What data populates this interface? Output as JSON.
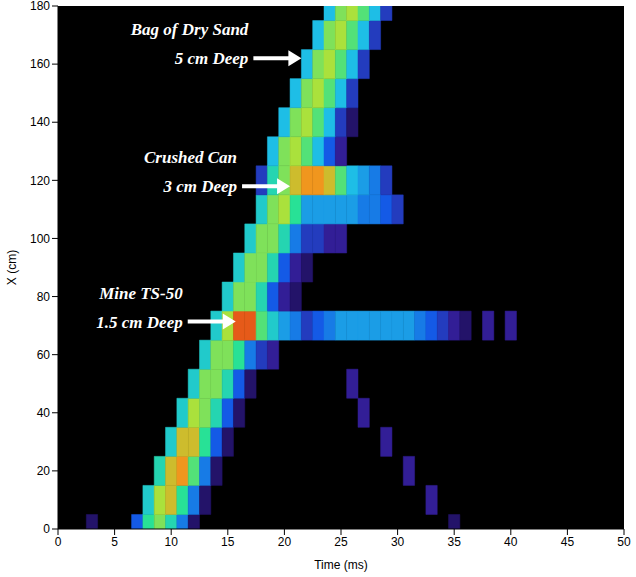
{
  "chart_data": {
    "type": "heatmap",
    "x_label": "Time (ms)",
    "y_label": "X (cm)",
    "xlim": [
      0,
      50
    ],
    "ylim": [
      0,
      180
    ],
    "xticks": [
      0,
      5,
      10,
      15,
      20,
      25,
      30,
      35,
      40,
      45,
      50
    ],
    "yticks": [
      0,
      20,
      40,
      60,
      80,
      100,
      120,
      140,
      160,
      180
    ],
    "grid": false,
    "heatmap": {
      "cell_width": 1,
      "cell_height": 10,
      "cells": [
        [
          3,
          0,
          0.2
        ],
        [
          7,
          0,
          0.35
        ],
        [
          8,
          0,
          0.65
        ],
        [
          9,
          0,
          0.75
        ],
        [
          10,
          0,
          0.6
        ],
        [
          11,
          0,
          0.4
        ],
        [
          12,
          0,
          0.2
        ],
        [
          35,
          0,
          0.2
        ],
        [
          8,
          10,
          0.55
        ],
        [
          9,
          10,
          0.8
        ],
        [
          10,
          10,
          0.85
        ],
        [
          11,
          10,
          0.65
        ],
        [
          12,
          10,
          0.4
        ],
        [
          13,
          10,
          0.2
        ],
        [
          33,
          10,
          0.25
        ],
        [
          9,
          20,
          0.6
        ],
        [
          10,
          20,
          0.85
        ],
        [
          11,
          20,
          0.9
        ],
        [
          12,
          20,
          0.7
        ],
        [
          13,
          20,
          0.4
        ],
        [
          14,
          20,
          0.2
        ],
        [
          31,
          20,
          0.25
        ],
        [
          10,
          30,
          0.55
        ],
        [
          11,
          30,
          0.85
        ],
        [
          12,
          30,
          0.85
        ],
        [
          13,
          30,
          0.65
        ],
        [
          14,
          30,
          0.35
        ],
        [
          15,
          30,
          0.2
        ],
        [
          29,
          30,
          0.25
        ],
        [
          11,
          40,
          0.55
        ],
        [
          12,
          40,
          0.8
        ],
        [
          13,
          40,
          0.75
        ],
        [
          14,
          40,
          0.6
        ],
        [
          15,
          40,
          0.35
        ],
        [
          16,
          40,
          0.2
        ],
        [
          27,
          40,
          0.25
        ],
        [
          12,
          50,
          0.55
        ],
        [
          13,
          50,
          0.75
        ],
        [
          14,
          50,
          0.75
        ],
        [
          15,
          50,
          0.6
        ],
        [
          16,
          50,
          0.35
        ],
        [
          17,
          50,
          0.2
        ],
        [
          26,
          50,
          0.25
        ],
        [
          13,
          60,
          0.55
        ],
        [
          14,
          60,
          0.75
        ],
        [
          15,
          60,
          0.75
        ],
        [
          16,
          60,
          0.65
        ],
        [
          17,
          60,
          0.4
        ],
        [
          18,
          60,
          0.3
        ],
        [
          19,
          60,
          0.25
        ],
        [
          14,
          70,
          0.55
        ],
        [
          15,
          70,
          0.8
        ],
        [
          16,
          70,
          0.95
        ],
        [
          17,
          70,
          0.95
        ],
        [
          18,
          70,
          0.7
        ],
        [
          19,
          70,
          0.55
        ],
        [
          20,
          70,
          0.45
        ],
        [
          21,
          70,
          0.4
        ],
        [
          22,
          70,
          0.3
        ],
        [
          23,
          70,
          0.35
        ],
        [
          24,
          70,
          0.4
        ],
        [
          25,
          70,
          0.45
        ],
        [
          26,
          70,
          0.45
        ],
        [
          27,
          70,
          0.45
        ],
        [
          28,
          70,
          0.45
        ],
        [
          29,
          70,
          0.45
        ],
        [
          30,
          70,
          0.45
        ],
        [
          31,
          70,
          0.45
        ],
        [
          32,
          70,
          0.4
        ],
        [
          33,
          70,
          0.35
        ],
        [
          34,
          70,
          0.3
        ],
        [
          35,
          70,
          0.25
        ],
        [
          36,
          70,
          0.2
        ],
        [
          38,
          70,
          0.25
        ],
        [
          40,
          70,
          0.25
        ],
        [
          15,
          80,
          0.55
        ],
        [
          16,
          80,
          0.75
        ],
        [
          17,
          80,
          0.75
        ],
        [
          18,
          80,
          0.6
        ],
        [
          19,
          80,
          0.35
        ],
        [
          20,
          80,
          0.25
        ],
        [
          21,
          80,
          0.2
        ],
        [
          16,
          90,
          0.55
        ],
        [
          17,
          90,
          0.75
        ],
        [
          18,
          90,
          0.75
        ],
        [
          19,
          90,
          0.6
        ],
        [
          20,
          90,
          0.35
        ],
        [
          21,
          90,
          0.25
        ],
        [
          22,
          90,
          0.2
        ],
        [
          17,
          100,
          0.55
        ],
        [
          18,
          100,
          0.75
        ],
        [
          19,
          100,
          0.75
        ],
        [
          20,
          100,
          0.6
        ],
        [
          21,
          100,
          0.4
        ],
        [
          22,
          100,
          0.3
        ],
        [
          23,
          100,
          0.3
        ],
        [
          24,
          100,
          0.25
        ],
        [
          25,
          100,
          0.25
        ],
        [
          18,
          110,
          0.55
        ],
        [
          19,
          110,
          0.75
        ],
        [
          20,
          110,
          0.8
        ],
        [
          21,
          110,
          0.65
        ],
        [
          22,
          110,
          0.45
        ],
        [
          23,
          110,
          0.45
        ],
        [
          24,
          110,
          0.45
        ],
        [
          25,
          110,
          0.45
        ],
        [
          26,
          110,
          0.45
        ],
        [
          27,
          110,
          0.4
        ],
        [
          28,
          110,
          0.4
        ],
        [
          29,
          110,
          0.35
        ],
        [
          30,
          110,
          0.3
        ],
        [
          18,
          120,
          0.3
        ],
        [
          19,
          120,
          0.6
        ],
        [
          20,
          120,
          0.75
        ],
        [
          21,
          120,
          0.85
        ],
        [
          22,
          120,
          0.9
        ],
        [
          23,
          120,
          0.9
        ],
        [
          24,
          120,
          0.85
        ],
        [
          25,
          120,
          0.7
        ],
        [
          26,
          120,
          0.5
        ],
        [
          27,
          120,
          0.45
        ],
        [
          28,
          120,
          0.4
        ],
        [
          29,
          120,
          0.3
        ],
        [
          19,
          130,
          0.5
        ],
        [
          20,
          130,
          0.75
        ],
        [
          21,
          130,
          0.8
        ],
        [
          22,
          130,
          0.7
        ],
        [
          23,
          130,
          0.5
        ],
        [
          24,
          130,
          0.35
        ],
        [
          25,
          130,
          0.25
        ],
        [
          20,
          140,
          0.5
        ],
        [
          21,
          140,
          0.75
        ],
        [
          22,
          140,
          0.8
        ],
        [
          23,
          140,
          0.7
        ],
        [
          24,
          140,
          0.5
        ],
        [
          25,
          140,
          0.3
        ],
        [
          26,
          140,
          0.2
        ],
        [
          21,
          150,
          0.5
        ],
        [
          22,
          150,
          0.75
        ],
        [
          23,
          150,
          0.8
        ],
        [
          24,
          150,
          0.7
        ],
        [
          25,
          150,
          0.5
        ],
        [
          26,
          150,
          0.3
        ],
        [
          22,
          160,
          0.5
        ],
        [
          23,
          160,
          0.75
        ],
        [
          24,
          160,
          0.8
        ],
        [
          25,
          160,
          0.7
        ],
        [
          26,
          160,
          0.5
        ],
        [
          27,
          160,
          0.3
        ],
        [
          23,
          170,
          0.5
        ],
        [
          24,
          170,
          0.75
        ],
        [
          25,
          170,
          0.8
        ],
        [
          26,
          170,
          0.7
        ],
        [
          27,
          170,
          0.5
        ],
        [
          28,
          170,
          0.3
        ],
        [
          24,
          180,
          0.5
        ],
        [
          25,
          180,
          0.75
        ],
        [
          26,
          180,
          0.8
        ],
        [
          27,
          180,
          0.7
        ],
        [
          28,
          180,
          0.5
        ],
        [
          29,
          180,
          0.3
        ]
      ]
    },
    "annotations": [
      {
        "lines": [
          "Bag of Dry Sand",
          "5 cm Deep"
        ],
        "x": 21.5,
        "y": 162
      },
      {
        "lines": [
          "Crushed Can",
          "3 cm Deep"
        ],
        "x": 20.5,
        "y": 118
      },
      {
        "lines": [
          "Mine TS-50",
          "1.5 cm Deep"
        ],
        "x": 15.7,
        "y": 71.4
      }
    ]
  }
}
